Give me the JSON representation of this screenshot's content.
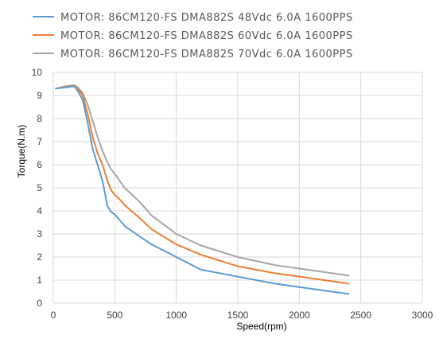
{
  "chart_data": {
    "type": "line",
    "xlabel": "Speed(rpm)",
    "ylabel": "Torque(N.m)",
    "xlim": [
      0,
      3000
    ],
    "ylim": [
      0,
      10
    ],
    "xticks": [
      0,
      500,
      1000,
      1500,
      2000,
      2500,
      3000
    ],
    "yticks": [
      0,
      1,
      2,
      3,
      4,
      5,
      6,
      7,
      8,
      9,
      10
    ],
    "grid": true,
    "legend_position": "top",
    "series": [
      {
        "name": "MOTOR: 86CM120-FS  DMA882S  48Vdc  6.0A  1600PPS",
        "color": "#5b9bd5",
        "x": [
          20,
          100,
          170,
          200,
          240,
          280,
          320,
          360,
          400,
          440,
          470,
          500,
          540,
          580,
          700,
          800,
          1000,
          1200,
          1500,
          1800,
          2000,
          2200,
          2400
        ],
        "y": [
          9.3,
          9.35,
          9.4,
          9.2,
          8.8,
          7.8,
          6.7,
          6.0,
          5.3,
          4.2,
          3.95,
          3.85,
          3.6,
          3.35,
          2.9,
          2.55,
          2.0,
          1.45,
          1.15,
          0.85,
          0.7,
          0.55,
          0.4
        ]
      },
      {
        "name": "MOTOR: 86CM120-FS  DMA882S  60Vdc  6.0A  1600PPS",
        "color": "#ed7d31",
        "x": [
          20,
          100,
          170,
          200,
          240,
          280,
          320,
          360,
          400,
          440,
          470,
          500,
          540,
          580,
          700,
          800,
          1000,
          1200,
          1500,
          1800,
          2000,
          2200,
          2400
        ],
        "y": [
          9.3,
          9.38,
          9.42,
          9.3,
          9.0,
          8.2,
          7.2,
          6.5,
          6.0,
          5.3,
          4.9,
          4.7,
          4.5,
          4.25,
          3.7,
          3.2,
          2.55,
          2.1,
          1.6,
          1.3,
          1.15,
          1.0,
          0.85
        ]
      },
      {
        "name": "MOTOR: 86CM120-FS  DMA882S  70Vdc  6.0A  1600PPS",
        "color": "#a6a6a6",
        "x": [
          20,
          100,
          170,
          200,
          240,
          280,
          320,
          360,
          400,
          440,
          470,
          500,
          540,
          580,
          700,
          800,
          1000,
          1200,
          1500,
          1800,
          2000,
          2200,
          2400
        ],
        "y": [
          9.3,
          9.4,
          9.45,
          9.35,
          9.1,
          8.6,
          7.9,
          7.2,
          6.6,
          6.1,
          5.8,
          5.6,
          5.3,
          5.0,
          4.4,
          3.8,
          3.0,
          2.5,
          2.0,
          1.65,
          1.5,
          1.35,
          1.2
        ]
      }
    ]
  }
}
